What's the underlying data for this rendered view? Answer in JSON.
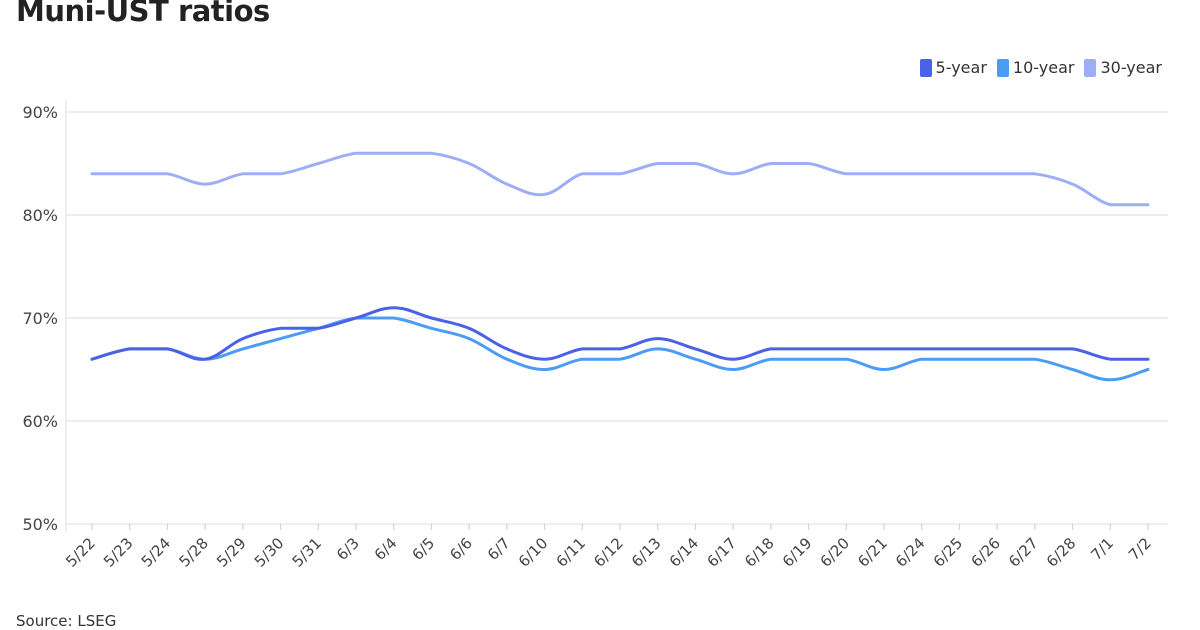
{
  "chart_data": {
    "type": "line",
    "title": "Muni-UST ratios",
    "source": "Source: LSEG",
    "categories": [
      "5/22",
      "5/23",
      "5/24",
      "5/28",
      "5/29",
      "5/30",
      "5/31",
      "6/3",
      "6/4",
      "6/5",
      "6/6",
      "6/7",
      "6/10",
      "6/11",
      "6/12",
      "6/13",
      "6/14",
      "6/17",
      "6/18",
      "6/19",
      "6/20",
      "6/21",
      "6/24",
      "6/25",
      "6/26",
      "6/27",
      "6/28",
      "7/1",
      "7/2"
    ],
    "ylim": [
      50,
      90
    ],
    "yticks": [
      50,
      60,
      70,
      80,
      90
    ],
    "ytick_labels": [
      "50%",
      "60%",
      "70%",
      "80%",
      "90%"
    ],
    "grid": true,
    "legend_position": "top-right",
    "series": [
      {
        "name": "5-year",
        "color": "#4a61e8",
        "values": [
          66,
          67,
          67,
          66,
          68,
          69,
          69,
          70,
          71,
          70,
          69,
          67,
          66,
          67,
          67,
          68,
          67,
          66,
          67,
          67,
          67,
          67,
          67,
          67,
          67,
          67,
          67,
          66,
          66
        ]
      },
      {
        "name": "10-year",
        "color": "#4b9cf5",
        "values": [
          66,
          67,
          67,
          66,
          67,
          68,
          69,
          70,
          70,
          69,
          68,
          66,
          65,
          66,
          66,
          67,
          66,
          65,
          66,
          66,
          66,
          65,
          66,
          66,
          66,
          66,
          65,
          64,
          65
        ]
      },
      {
        "name": "30-year",
        "color": "#9eaef6",
        "values": [
          84,
          84,
          84,
          83,
          84,
          84,
          85,
          86,
          86,
          86,
          85,
          83,
          82,
          84,
          84,
          85,
          85,
          84,
          85,
          85,
          84,
          84,
          84,
          84,
          84,
          84,
          83,
          81,
          81
        ]
      }
    ]
  }
}
